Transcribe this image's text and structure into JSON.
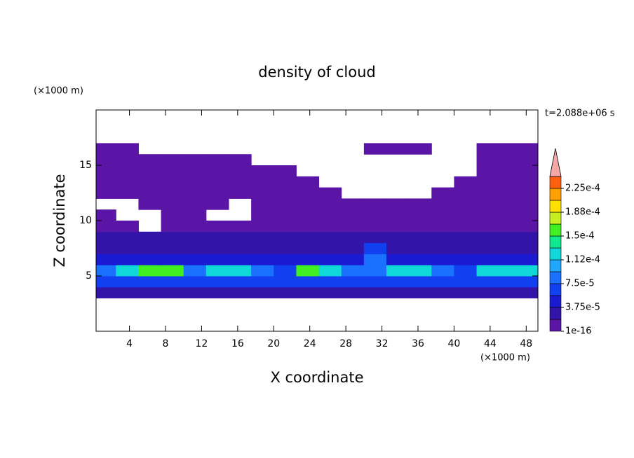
{
  "chart_data": {
    "type": "contour",
    "title": "density of cloud",
    "x_label": "X coordinate",
    "y_label": "Z coordinate",
    "x_unit": "(×1000 m)",
    "y_unit": "(×1000 m)",
    "time_label": "t=2.088e+06 s",
    "xlim": [
      0.3,
      49.3
    ],
    "ylim": [
      0,
      20
    ],
    "xticks": [
      4,
      8,
      12,
      16,
      20,
      24,
      28,
      32,
      36,
      40,
      44,
      48
    ],
    "yticks": [
      5,
      10,
      15
    ],
    "x": [
      1.25,
      3.75,
      6.25,
      8.75,
      11.25,
      13.75,
      16.25,
      18.75,
      21.25,
      23.75,
      26.25,
      28.75,
      31.25,
      33.75,
      36.25,
      38.75,
      41.25,
      43.75,
      46.25,
      48.75
    ],
    "z": [
      3.5,
      4.5,
      5.5,
      6.5,
      7.5,
      8.5,
      9.5,
      10.5,
      11.5,
      12.5,
      13.5,
      14.5,
      15.5,
      16.5
    ],
    "field": [
      [
        2e-05,
        2e-05,
        2e-05,
        2e-05,
        2e-05,
        2e-05,
        2e-05,
        2e-05,
        2e-05,
        2e-05,
        2e-05,
        2e-05,
        2e-05,
        2e-05,
        2e-05,
        2e-05,
        2e-05,
        2e-05,
        2e-05,
        2e-05
      ],
      [
        6e-05,
        6e-05,
        6e-05,
        6e-05,
        6e-05,
        6e-05,
        6e-05,
        6e-05,
        6e-05,
        6e-05,
        6e-05,
        6e-05,
        6e-05,
        6e-05,
        6e-05,
        6e-05,
        6e-05,
        6e-05,
        6e-05,
        6e-05
      ],
      [
        9e-05,
        0.00012,
        0.00016,
        0.00016,
        9e-05,
        0.00012,
        0.00012,
        9e-05,
        6e-05,
        0.00016,
        0.00012,
        9e-05,
        9e-05,
        0.00012,
        0.00012,
        9e-05,
        6e-05,
        0.00012,
        0.00012,
        0.00012
      ],
      [
        5e-05,
        5e-05,
        5e-05,
        5e-05,
        5e-05,
        5e-05,
        5e-05,
        5e-05,
        5e-05,
        5e-05,
        5e-05,
        5e-05,
        8e-05,
        5e-05,
        5e-05,
        5e-05,
        5e-05,
        5e-05,
        5e-05,
        5e-05
      ],
      [
        3e-05,
        3e-05,
        3e-05,
        3e-05,
        3e-05,
        3e-05,
        3e-05,
        3e-05,
        3e-05,
        3e-05,
        3e-05,
        3e-05,
        6e-05,
        3e-05,
        3e-05,
        3e-05,
        3e-05,
        3e-05,
        3e-05,
        3e-05
      ],
      [
        2e-05,
        2e-05,
        2e-05,
        2e-05,
        2e-05,
        2e-05,
        2e-05,
        2e-05,
        2e-05,
        2e-05,
        2e-05,
        2e-05,
        2e-05,
        2e-05,
        2e-05,
        2e-05,
        2e-05,
        2e-05,
        2e-05,
        2e-05
      ],
      [
        1e-05,
        1e-05,
        null,
        1e-05,
        1e-05,
        1e-05,
        1e-05,
        1e-05,
        1e-05,
        1e-05,
        1e-05,
        1e-05,
        1e-05,
        1e-05,
        1e-05,
        1e-05,
        1e-05,
        1e-05,
        1e-05,
        1e-05
      ],
      [
        1e-05,
        null,
        null,
        1e-05,
        1e-05,
        null,
        null,
        1e-05,
        1e-05,
        1e-05,
        1e-05,
        1e-05,
        1e-05,
        1e-05,
        1e-05,
        1e-05,
        1e-05,
        1e-05,
        1e-05,
        1e-05
      ],
      [
        null,
        null,
        1e-05,
        1e-05,
        1e-05,
        1e-05,
        null,
        1e-05,
        1e-05,
        1e-05,
        1e-05,
        1e-05,
        1e-05,
        1e-05,
        1e-05,
        1e-05,
        1e-05,
        1e-05,
        1e-05,
        1e-05
      ],
      [
        1e-05,
        1e-05,
        1e-05,
        1e-05,
        1e-05,
        1e-05,
        1e-05,
        1e-05,
        1e-05,
        1e-05,
        1e-05,
        null,
        null,
        null,
        null,
        1e-05,
        1e-05,
        1e-05,
        1e-05,
        1e-05
      ],
      [
        1e-05,
        1e-05,
        1e-05,
        1e-05,
        1e-05,
        1e-05,
        1e-05,
        1e-05,
        1e-05,
        1e-05,
        null,
        null,
        null,
        null,
        null,
        null,
        1e-05,
        1e-05,
        1e-05,
        1e-05
      ],
      [
        1e-05,
        1e-05,
        1e-05,
        1e-05,
        1e-05,
        1e-05,
        1e-05,
        1e-05,
        1e-05,
        null,
        null,
        null,
        null,
        null,
        null,
        null,
        null,
        1e-05,
        1e-05,
        1e-05
      ],
      [
        1e-05,
        1e-05,
        1e-05,
        1e-05,
        1e-05,
        1e-05,
        1e-05,
        null,
        null,
        null,
        null,
        null,
        null,
        null,
        null,
        null,
        null,
        1e-05,
        1e-05,
        1e-05
      ],
      [
        1e-05,
        1e-05,
        null,
        null,
        null,
        null,
        null,
        null,
        null,
        null,
        null,
        null,
        1e-05,
        1e-05,
        1e-05,
        null,
        null,
        1e-05,
        1e-05,
        1e-05
      ]
    ],
    "levels": [
      1e-16,
      1.875e-05,
      3.75e-05,
      5.625e-05,
      7.5e-05,
      9.375e-05,
      0.0001125,
      0.00013125,
      0.00015,
      0.00016875,
      0.0001875,
      0.00020625,
      0.000225,
      0.00024375
    ],
    "colors": [
      "#5a14a6",
      "#3214a8",
      "#1a1ad2",
      "#1040f0",
      "#1a70ff",
      "#20a8ff",
      "#10d8d8",
      "#10e890",
      "#40f020",
      "#c8f020",
      "#ffe000",
      "#ffa000",
      "#ff6010"
    ],
    "extend_color": "#f4a8a8",
    "colorbar_ticks": [
      {
        "value": 1e-16,
        "label": "1e-16"
      },
      {
        "value": 3.75e-05,
        "label": "3.75e-5"
      },
      {
        "value": 7.5e-05,
        "label": "7.5e-5"
      },
      {
        "value": 0.0001125,
        "label": "1.12e-4"
      },
      {
        "value": 0.00015,
        "label": "1.5e-4"
      },
      {
        "value": 0.0001875,
        "label": "1.88e-4"
      },
      {
        "value": 0.000225,
        "label": "2.25e-4"
      }
    ]
  }
}
